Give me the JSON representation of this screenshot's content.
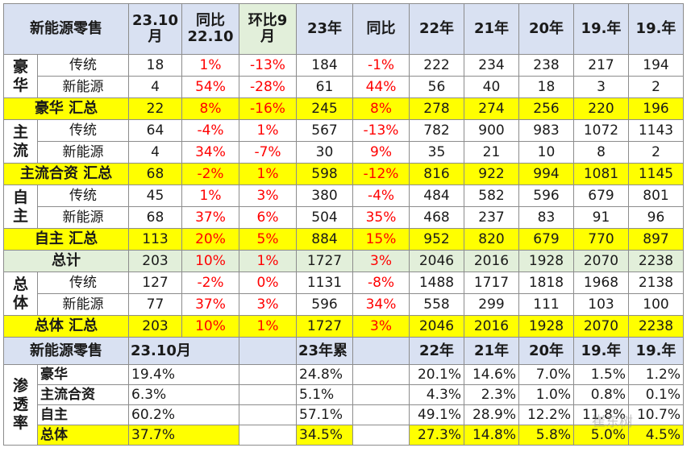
{
  "header": {
    "title": "新能源零售",
    "c1a": "23.10",
    "c1b": "月",
    "c2a": "同比",
    "c2b": "22.10",
    "c3a": "环比9",
    "c3b": "月",
    "c4": "23年",
    "c5": "同比",
    "c6": "22年",
    "c7": "21年",
    "c8": "20年",
    "c9": "19.年",
    "c10": "19.年"
  },
  "groups": {
    "luxury": [
      "豪",
      "华"
    ],
    "mainstream": [
      "主",
      "流"
    ],
    "domestic": [
      "自",
      "主"
    ],
    "overall": [
      "总",
      "体"
    ]
  },
  "rows": {
    "lux_trad": {
      "label": "传统",
      "v": [
        "18",
        "1%",
        "-13%",
        "184",
        "-1%",
        "222",
        "234",
        "238",
        "217",
        "194"
      ]
    },
    "lux_nev": {
      "label": "新能源",
      "v": [
        "4",
        "54%",
        "-28%",
        "61",
        "44%",
        "56",
        "40",
        "18",
        "3",
        "2"
      ]
    },
    "lux_sum": {
      "label": "豪华 汇总",
      "v": [
        "22",
        "8%",
        "-16%",
        "245",
        "8%",
        "278",
        "274",
        "256",
        "220",
        "196"
      ]
    },
    "main_trad": {
      "label": "传统",
      "v": [
        "64",
        "-4%",
        "1%",
        "567",
        "-13%",
        "782",
        "900",
        "983",
        "1072",
        "1143"
      ]
    },
    "main_nev": {
      "label": "新能源",
      "v": [
        "4",
        "34%",
        "-7%",
        "30",
        "9%",
        "35",
        "21",
        "10",
        "8",
        "2"
      ]
    },
    "main_sum": {
      "label": "主流合资 汇总",
      "v": [
        "68",
        "-2%",
        "1%",
        "598",
        "-12%",
        "816",
        "922",
        "994",
        "1081",
        "1145"
      ]
    },
    "dom_trad": {
      "label": "传统",
      "v": [
        "45",
        "1%",
        "3%",
        "380",
        "-4%",
        "484",
        "582",
        "596",
        "679",
        "801"
      ]
    },
    "dom_nev": {
      "label": "新能源",
      "v": [
        "68",
        "37%",
        "6%",
        "504",
        "35%",
        "468",
        "237",
        "83",
        "91",
        "96"
      ]
    },
    "dom_sum": {
      "label": "自主 汇总",
      "v": [
        "113",
        "20%",
        "5%",
        "884",
        "15%",
        "952",
        "820",
        "679",
        "770",
        "897"
      ]
    },
    "total": {
      "label": "总计",
      "v": [
        "203",
        "10%",
        "1%",
        "1727",
        "3%",
        "2046",
        "2016",
        "1928",
        "2070",
        "2238"
      ]
    },
    "all_trad": {
      "label": "传统",
      "v": [
        "127",
        "-2%",
        "0%",
        "1131",
        "-8%",
        "1488",
        "1717",
        "1818",
        "1968",
        "2138"
      ]
    },
    "all_nev": {
      "label": "新能源",
      "v": [
        "77",
        "37%",
        "3%",
        "596",
        "34%",
        "558",
        "299",
        "111",
        "103",
        "100"
      ]
    },
    "all_sum": {
      "label": "总体 汇总",
      "v": [
        "203",
        "10%",
        "1%",
        "1727",
        "3%",
        "2046",
        "2016",
        "1928",
        "2070",
        "2238"
      ]
    }
  },
  "pen_header": {
    "title": "新能源零售",
    "c1": "23.10月",
    "c4": "23年累",
    "c6": "22年",
    "c7": "21年",
    "c8": "20年",
    "c9": "19.年",
    "c10": "19.年"
  },
  "pen_group": [
    "渗",
    "透",
    "率"
  ],
  "pen_rows": [
    {
      "label": "豪华",
      "m": "19.4%",
      "y": "24.8%",
      "a": "20.1%",
      "b": "14.6%",
      "c": "7.0%",
      "d": "1.5%",
      "e": "1.2%"
    },
    {
      "label": "主流合资",
      "m": "6.3%",
      "y": "5.1%",
      "a": "4.3%",
      "b": "2.3%",
      "c": "1.0%",
      "d": "0.8%",
      "e": "0.1%"
    },
    {
      "label": "自主",
      "m": "60.2%",
      "y": "57.1%",
      "a": "49.1%",
      "b": "28.9%",
      "c": "12.2%",
      "d": "11.8%",
      "e": "10.7%"
    },
    {
      "label": "总体",
      "m": "37.7%",
      "y": "34.5%",
      "a": "27.3%",
      "b": "14.8%",
      "c": "5.8%",
      "d": "5.0%",
      "e": "4.5%"
    }
  ],
  "watermark": "崔东树"
}
